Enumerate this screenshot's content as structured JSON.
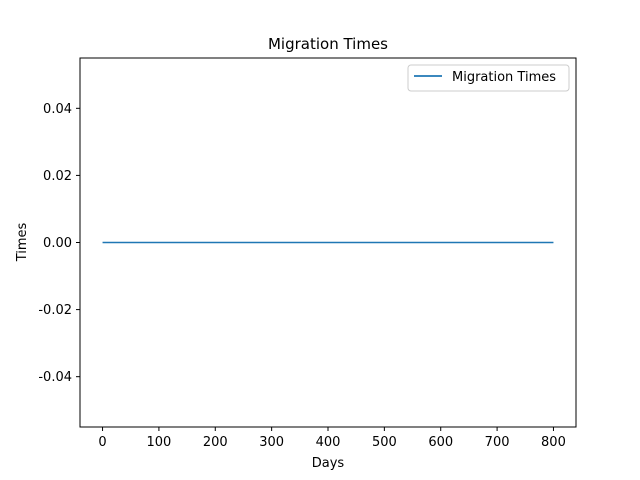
{
  "chart_data": {
    "type": "line",
    "title": "Migration Times",
    "xlabel": "Days",
    "ylabel": "Times",
    "xlim": [
      -40,
      840
    ],
    "ylim": [
      -0.055,
      0.055
    ],
    "xticks": [
      0,
      100,
      200,
      300,
      400,
      500,
      600,
      700,
      800
    ],
    "yticks": [
      -0.04,
      -0.02,
      0.0,
      0.02,
      0.04
    ],
    "ytick_labels": [
      "-0.04",
      "-0.02",
      "0.00",
      "0.02",
      "0.04"
    ],
    "grid": false,
    "legend_position": "top-right",
    "series": [
      {
        "name": "Migration Times",
        "color": "#1f77b4",
        "x": [
          0,
          800
        ],
        "y": [
          0,
          0
        ]
      }
    ]
  }
}
